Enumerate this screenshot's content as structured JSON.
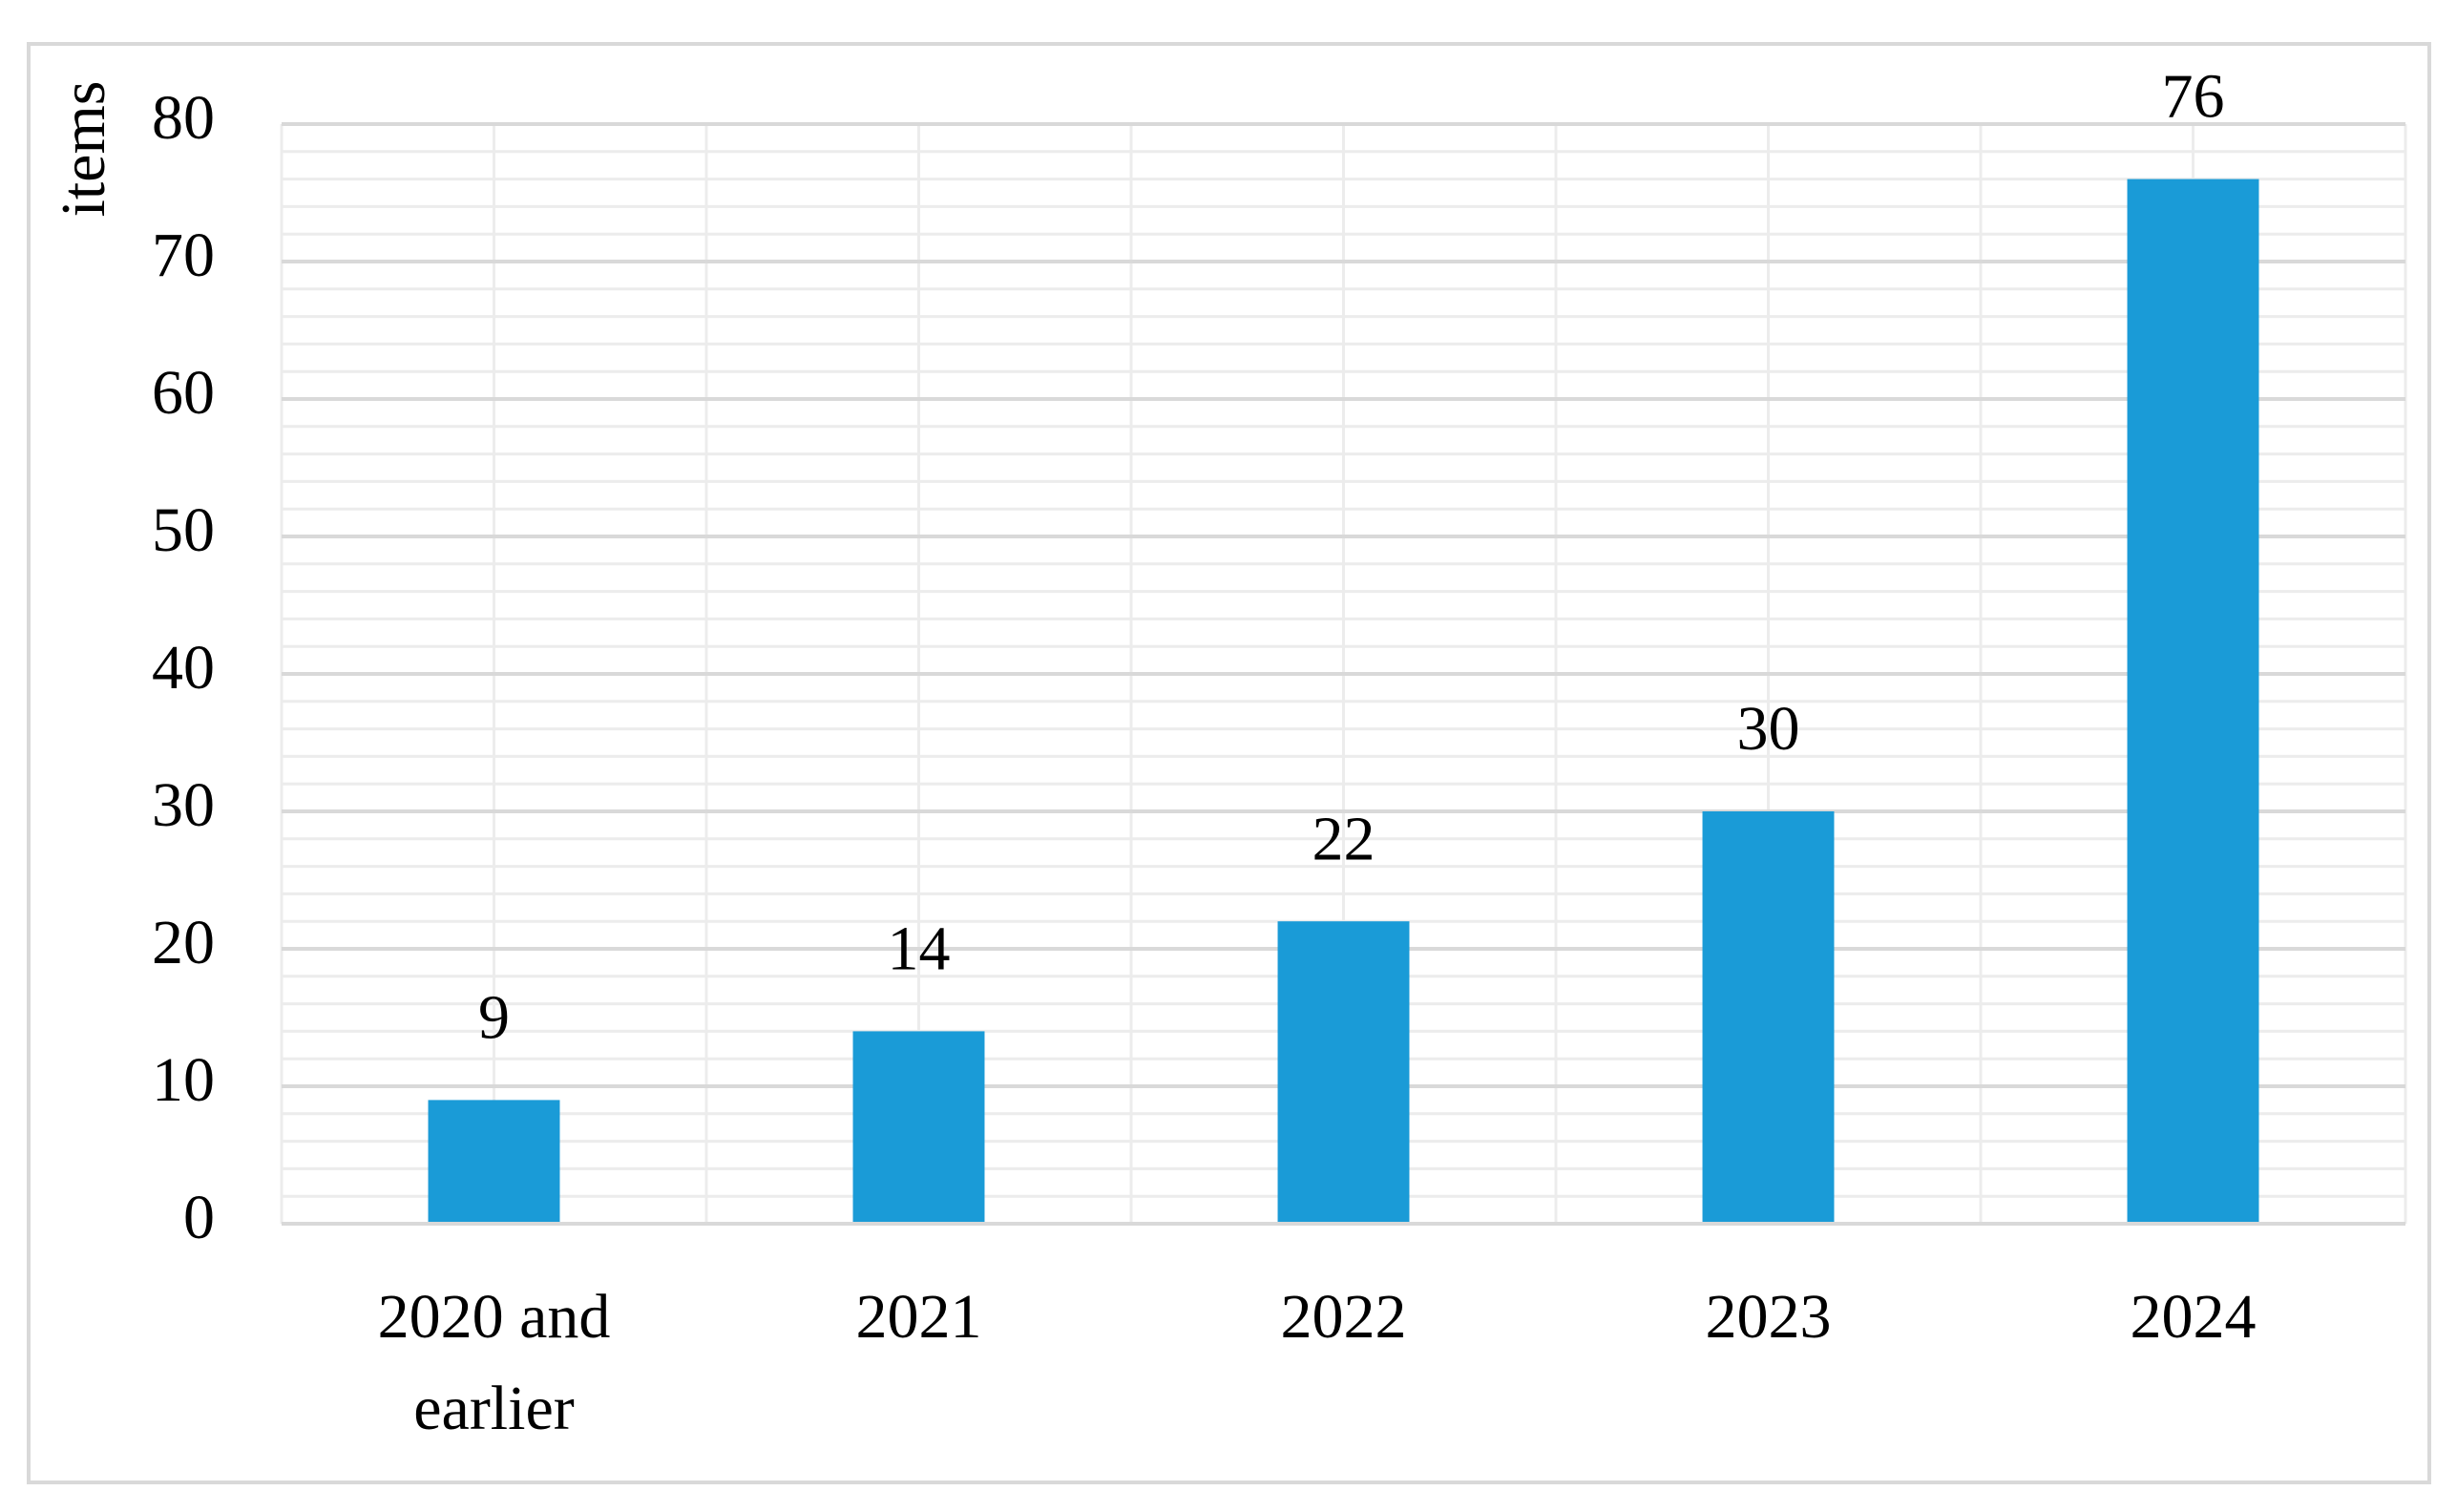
{
  "chart_data": {
    "type": "bar",
    "y_label": "items",
    "categories": [
      "2020 and earlier",
      "2021",
      "2022",
      "2023",
      "2024"
    ],
    "values": [
      9,
      14,
      22,
      30,
      76
    ],
    "color": "#1a9bd7",
    "ylim": [
      0,
      80
    ],
    "yticks": [
      0,
      10,
      20,
      30,
      40,
      50,
      60,
      70,
      80
    ],
    "grid": true,
    "data_labels": true
  }
}
